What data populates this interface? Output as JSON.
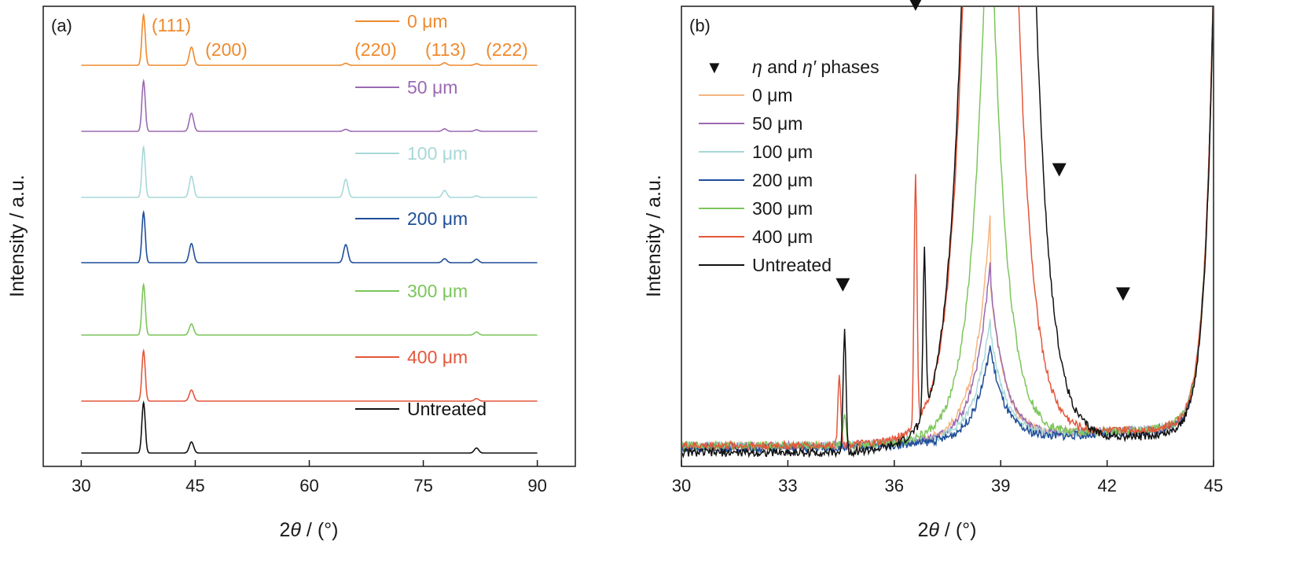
{
  "chart_data": [
    {
      "panel_label": "(a)",
      "type": "line",
      "xlabel_pre": "2",
      "xlabel_sym": "θ",
      "xlabel_post": " / (°)",
      "ylabel": "Intensity / a.u.",
      "xlim": [
        25,
        95
      ],
      "xticks": [
        "30",
        "45",
        "60",
        "75",
        "90"
      ],
      "stacked": true,
      "legend_placement": "inline, above each trace",
      "peak_labels": [
        {
          "label": "(111)",
          "x": 38.2
        },
        {
          "label": "(200)",
          "x": 44.5
        },
        {
          "label": "(220)",
          "x": 64.8
        },
        {
          "label": "(113)",
          "x": 77.8
        },
        {
          "label": "(222)",
          "x": 82.0
        }
      ],
      "peak_positions": [
        38.2,
        44.5,
        64.8,
        77.8,
        82.0
      ],
      "series": [
        {
          "name": "0 μm",
          "color": "#ef8a2e",
          "peak_heights": [
            1.0,
            0.36,
            0.04,
            0.05,
            0.03
          ]
        },
        {
          "name": "50 μm",
          "color": "#9b6ab2",
          "peak_heights": [
            1.0,
            0.36,
            0.04,
            0.05,
            0.03
          ]
        },
        {
          "name": "100 μm",
          "color": "#a8d8d8",
          "peak_heights": [
            1.0,
            0.42,
            0.36,
            0.14,
            0.03
          ]
        },
        {
          "name": "200 μm",
          "color": "#1f4e99",
          "peak_heights": [
            1.0,
            0.38,
            0.36,
            0.08,
            0.07
          ]
        },
        {
          "name": "300 μm",
          "color": "#7cc65a",
          "peak_heights": [
            1.0,
            0.22,
            0.0,
            0.0,
            0.06
          ]
        },
        {
          "name": "400 μm",
          "color": "#e4573c",
          "peak_heights": [
            1.0,
            0.22,
            0.0,
            0.0,
            0.05
          ]
        },
        {
          "name": "Untreated",
          "color": "#111111",
          "peak_heights": [
            1.0,
            0.22,
            0.0,
            0.0,
            0.1
          ]
        }
      ]
    },
    {
      "panel_label": "(b)",
      "type": "line",
      "xlabel_pre": "2",
      "xlabel_sym": "θ",
      "xlabel_post": " / (°)",
      "ylabel": "Intensity / a.u.",
      "xlim": [
        30,
        45
      ],
      "xticks": [
        "30",
        "33",
        "36",
        "39",
        "42",
        "45"
      ],
      "marker_legend": {
        "symbol": "▼",
        "pre": "η",
        "mid": " and ",
        "prime": "η′",
        "post": " phases"
      },
      "marker_positions": [
        {
          "x": 34.55,
          "y": 0.38
        },
        {
          "x": 36.6,
          "y": 0.99
        },
        {
          "x": 40.65,
          "y": 0.63
        },
        {
          "x": 42.45,
          "y": 0.36
        }
      ],
      "legend_placement": "upper-left",
      "series": [
        {
          "name": "0 μm",
          "color": "#f5b57f"
        },
        {
          "name": "50 μm",
          "color": "#9b6ab2"
        },
        {
          "name": "100 μm",
          "color": "#a8d8d8"
        },
        {
          "name": "200 μm",
          "color": "#1f4e99"
        },
        {
          "name": "300 μm",
          "color": "#7cc65a"
        },
        {
          "name": "400 μm",
          "color": "#e4573c"
        },
        {
          "name": "Untreated",
          "color": "#111111"
        }
      ]
    }
  ]
}
